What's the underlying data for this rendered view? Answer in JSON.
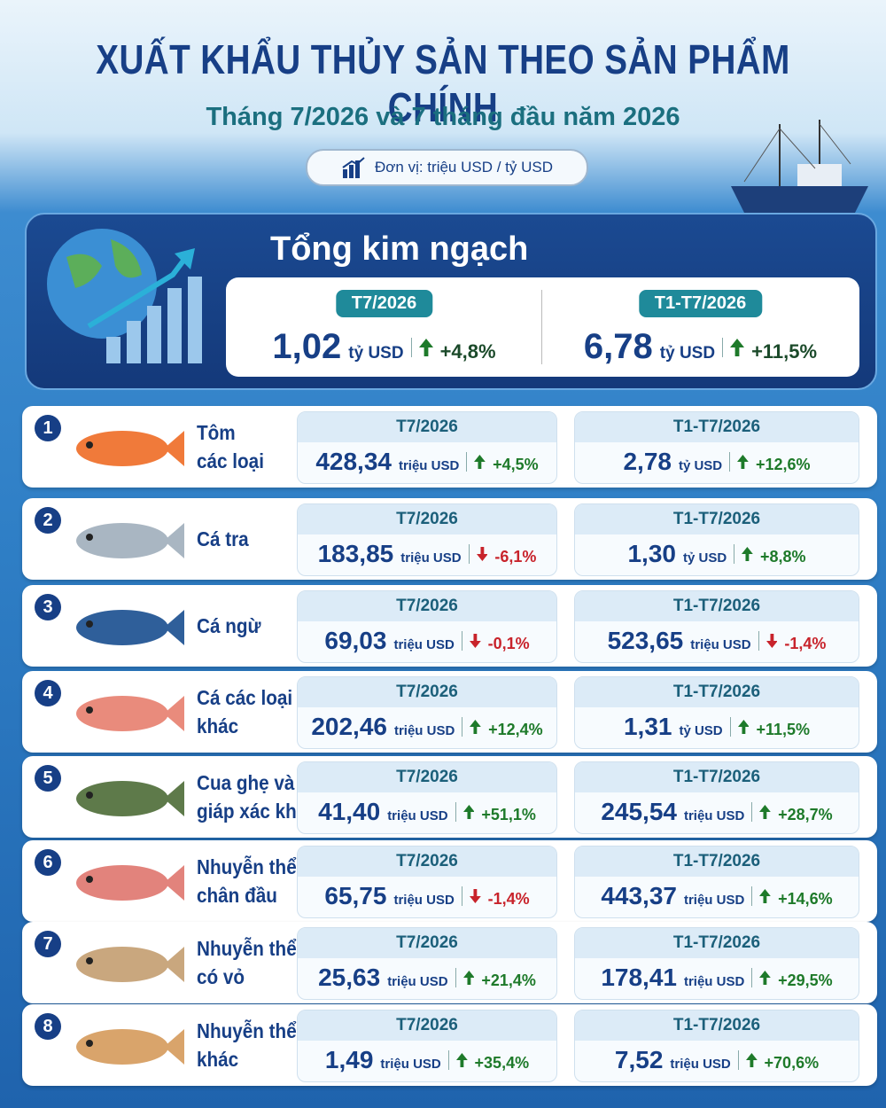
{
  "header": {
    "title": "XUẤT KHẨU THỦY SẢN THEO SẢN PHẨM CHÍNH",
    "subtitle": "Tháng 7/2026 và 7 tháng đầu năm 2026",
    "unit": "Đơn vị: triệu USD / tỷ USD"
  },
  "total": {
    "title": "Tổng kim ngạch",
    "periods": [
      {
        "label": "T7/2026",
        "value": "1,02",
        "unit": "tỷ USD",
        "change": "+4,8%",
        "direction": "up"
      },
      {
        "label": "T1-T7/2026",
        "value": "6,78",
        "unit": "tỷ USD",
        "change": "+11,5%",
        "direction": "up"
      }
    ]
  },
  "products": [
    {
      "number": "1",
      "name": [
        "Tôm",
        "các loại"
      ],
      "periods": [
        {
          "label": "T7/2026",
          "value": "428,34",
          "unit": "triệu USD",
          "change": "+4,5%",
          "direction": "up"
        },
        {
          "label": "T1-T7/2026",
          "value": "2,78",
          "unit": "tỷ USD",
          "change": "+12,6%",
          "direction": "up"
        }
      ]
    },
    {
      "number": "2",
      "name": [
        "Cá tra"
      ],
      "periods": [
        {
          "label": "T7/2026",
          "value": "183,85",
          "unit": "triệu USD",
          "change": "-6,1%",
          "direction": "down"
        },
        {
          "label": "T1-T7/2026",
          "value": "1,30",
          "unit": "tỷ USD",
          "change": "+8,8%",
          "direction": "up"
        }
      ]
    },
    {
      "number": "3",
      "name": [
        "Cá ngừ"
      ],
      "periods": [
        {
          "label": "T7/2026",
          "value": "69,03",
          "unit": "triệu USD",
          "change": "-0,1%",
          "direction": "down"
        },
        {
          "label": "T1-T7/2026",
          "value": "523,65",
          "unit": "triệu USD",
          "change": "-1,4%",
          "direction": "down"
        }
      ]
    },
    {
      "number": "4",
      "name": [
        "Cá các loại",
        "khác"
      ],
      "periods": [
        {
          "label": "T7/2026",
          "value": "202,46",
          "unit": "triệu USD",
          "change": "+12,4%",
          "direction": "up"
        },
        {
          "label": "T1-T7/2026",
          "value": "1,31",
          "unit": "tỷ USD",
          "change": "+11,5%",
          "direction": "up"
        }
      ]
    },
    {
      "number": "5",
      "name": [
        "Cua ghẹ và",
        "giáp xác khác"
      ],
      "periods": [
        {
          "label": "T7/2026",
          "value": "41,40",
          "unit": "triệu USD",
          "change": "+51,1%",
          "direction": "up"
        },
        {
          "label": "T1-T7/2026",
          "value": "245,54",
          "unit": "triệu USD",
          "change": "+28,7%",
          "direction": "up"
        }
      ]
    },
    {
      "number": "6",
      "name": [
        "Nhuyễn thể",
        "chân đầu"
      ],
      "periods": [
        {
          "label": "T7/2026",
          "value": "65,75",
          "unit": "triệu USD",
          "change": "-1,4%",
          "direction": "down"
        },
        {
          "label": "T1-T7/2026",
          "value": "443,37",
          "unit": "triệu USD",
          "change": "+14,6%",
          "direction": "up"
        }
      ]
    },
    {
      "number": "7",
      "name": [
        "Nhuyễn thể",
        "có vỏ"
      ],
      "periods": [
        {
          "label": "T7/2026",
          "value": "25,63",
          "unit": "triệu USD",
          "change": "+21,4%",
          "direction": "up"
        },
        {
          "label": "T1-T7/2026",
          "value": "178,41",
          "unit": "triệu USD",
          "change": "+29,5%",
          "direction": "up"
        }
      ]
    },
    {
      "number": "8",
      "name": [
        "Nhuyễn thể",
        "khác"
      ],
      "periods": [
        {
          "label": "T7/2026",
          "value": "1,49",
          "unit": "triệu USD",
          "change": "+35,4%",
          "direction": "up"
        },
        {
          "label": "T1-T7/2026",
          "value": "7,52",
          "unit": "triệu USD",
          "change": "+70,6%",
          "direction": "up"
        }
      ]
    }
  ]
}
